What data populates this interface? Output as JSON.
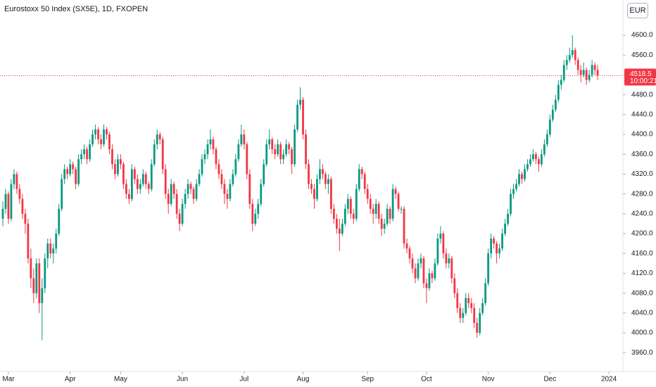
{
  "chart_data": {
    "type": "candlestick",
    "title": "Eurostoxx 50 Index (SX5E), 1D, FXOPEN",
    "currency": "EUR",
    "up_color": "#089981",
    "down_color": "#f23645",
    "xlim": [
      -1,
      221
    ],
    "xticks": [
      {
        "value": 2,
        "label": "Mar"
      },
      {
        "value": 24,
        "label": "Apr"
      },
      {
        "value": 42,
        "label": "May"
      },
      {
        "value": 64,
        "label": "Jun"
      },
      {
        "value": 86,
        "label": "Jul"
      },
      {
        "value": 107,
        "label": "Aug"
      },
      {
        "value": 130,
        "label": "Sep"
      },
      {
        "value": 151,
        "label": "Oct"
      },
      {
        "value": 173,
        "label": "Nov"
      },
      {
        "value": 195,
        "label": "Dec"
      },
      {
        "value": 216,
        "label": "2024"
      }
    ],
    "ylim": [
      3922,
      4671
    ],
    "yticks": [
      {
        "value": 3960,
        "label": "3960.0"
      },
      {
        "value": 4000,
        "label": "4000.0"
      },
      {
        "value": 4040,
        "label": "4040.0"
      },
      {
        "value": 4080,
        "label": "4080.0"
      },
      {
        "value": 4120,
        "label": "4120.0"
      },
      {
        "value": 4160,
        "label": "4160.0"
      },
      {
        "value": 4200,
        "label": "4200.0"
      },
      {
        "value": 4240,
        "label": "4240.0"
      },
      {
        "value": 4280,
        "label": "4280.0"
      },
      {
        "value": 4320,
        "label": "4320.0"
      },
      {
        "value": 4360,
        "label": "4360.0"
      },
      {
        "value": 4400,
        "label": "4400.0"
      },
      {
        "value": 4440,
        "label": "4440.0"
      },
      {
        "value": 4480,
        "label": "4480.0"
      },
      {
        "value": 4520,
        "label": "4520.0"
      },
      {
        "value": 4560,
        "label": "4560.0"
      },
      {
        "value": 4600,
        "label": "4600.0"
      }
    ],
    "last_price": 4518.5,
    "countdown": "10:00:21",
    "ohlc": [
      [
        4230,
        4265,
        4215,
        4250
      ],
      [
        4250,
        4290,
        4240,
        4280
      ],
      [
        4280,
        4285,
        4220,
        4230
      ],
      [
        4230,
        4310,
        4225,
        4300
      ],
      [
        4300,
        4330,
        4290,
        4320
      ],
      [
        4320,
        4325,
        4280,
        4290
      ],
      [
        4290,
        4300,
        4260,
        4270
      ],
      [
        4270,
        4280,
        4230,
        4240
      ],
      [
        4240,
        4250,
        4200,
        4220
      ],
      [
        4220,
        4230,
        4140,
        4150
      ],
      [
        4150,
        4170,
        4090,
        4110
      ],
      [
        4110,
        4130,
        4060,
        4080
      ],
      [
        4080,
        4150,
        4070,
        4140
      ],
      [
        4140,
        4150,
        4040,
        4060
      ],
      [
        4060,
        4110,
        3985,
        4090
      ],
      [
        4090,
        4160,
        4080,
        4150
      ],
      [
        4150,
        4190,
        4130,
        4180
      ],
      [
        4180,
        4190,
        4150,
        4160
      ],
      [
        4160,
        4180,
        4140,
        4170
      ],
      [
        4170,
        4210,
        4160,
        4200
      ],
      [
        4200,
        4260,
        4195,
        4250
      ],
      [
        4250,
        4320,
        4245,
        4310
      ],
      [
        4310,
        4340,
        4300,
        4330
      ],
      [
        4330,
        4335,
        4310,
        4320
      ],
      [
        4320,
        4350,
        4315,
        4340
      ],
      [
        4340,
        4345,
        4320,
        4330
      ],
      [
        4330,
        4335,
        4290,
        4300
      ],
      [
        4300,
        4360,
        4295,
        4350
      ],
      [
        4350,
        4370,
        4340,
        4360
      ],
      [
        4360,
        4380,
        4350,
        4370
      ],
      [
        4370,
        4375,
        4340,
        4350
      ],
      [
        4350,
        4390,
        4345,
        4380
      ],
      [
        4380,
        4410,
        4375,
        4400
      ],
      [
        4400,
        4420,
        4390,
        4410
      ],
      [
        4410,
        4415,
        4380,
        4390
      ],
      [
        4390,
        4400,
        4370,
        4380
      ],
      [
        4380,
        4420,
        4375,
        4410
      ],
      [
        4410,
        4415,
        4390,
        4400
      ],
      [
        4400,
        4405,
        4360,
        4370
      ],
      [
        4370,
        4380,
        4330,
        4340
      ],
      [
        4340,
        4350,
        4310,
        4320
      ],
      [
        4320,
        4360,
        4315,
        4350
      ],
      [
        4350,
        4360,
        4330,
        4340
      ],
      [
        4340,
        4345,
        4290,
        4300
      ],
      [
        4300,
        4310,
        4270,
        4280
      ],
      [
        4280,
        4290,
        4260,
        4270
      ],
      [
        4270,
        4340,
        4265,
        4330
      ],
      [
        4330,
        4335,
        4300,
        4310
      ],
      [
        4310,
        4320,
        4280,
        4290
      ],
      [
        4290,
        4310,
        4280,
        4300
      ],
      [
        4300,
        4330,
        4295,
        4320
      ],
      [
        4320,
        4325,
        4290,
        4300
      ],
      [
        4300,
        4305,
        4280,
        4290
      ],
      [
        4290,
        4350,
        4285,
        4340
      ],
      [
        4340,
        4390,
        4335,
        4380
      ],
      [
        4380,
        4410,
        4370,
        4400
      ],
      [
        4400,
        4405,
        4380,
        4390
      ],
      [
        4390,
        4395,
        4320,
        4330
      ],
      [
        4330,
        4340,
        4270,
        4280
      ],
      [
        4280,
        4290,
        4240,
        4260
      ],
      [
        4260,
        4310,
        4255,
        4300
      ],
      [
        4300,
        4305,
        4270,
        4280
      ],
      [
        4280,
        4290,
        4230,
        4240
      ],
      [
        4240,
        4250,
        4205,
        4220
      ],
      [
        4220,
        4270,
        4215,
        4260
      ],
      [
        4260,
        4290,
        4250,
        4280
      ],
      [
        4280,
        4310,
        4270,
        4300
      ],
      [
        4300,
        4305,
        4280,
        4290
      ],
      [
        4290,
        4295,
        4260,
        4270
      ],
      [
        4270,
        4310,
        4265,
        4300
      ],
      [
        4300,
        4330,
        4295,
        4320
      ],
      [
        4320,
        4360,
        4315,
        4350
      ],
      [
        4350,
        4370,
        4340,
        4360
      ],
      [
        4360,
        4390,
        4350,
        4380
      ],
      [
        4380,
        4410,
        4370,
        4390
      ],
      [
        4390,
        4395,
        4360,
        4370
      ],
      [
        4370,
        4375,
        4330,
        4340
      ],
      [
        4340,
        4350,
        4310,
        4320
      ],
      [
        4320,
        4330,
        4290,
        4300
      ],
      [
        4300,
        4310,
        4260,
        4280
      ],
      [
        4280,
        4290,
        4250,
        4270
      ],
      [
        4270,
        4310,
        4265,
        4300
      ],
      [
        4300,
        4330,
        4295,
        4320
      ],
      [
        4320,
        4360,
        4315,
        4350
      ],
      [
        4350,
        4390,
        4345,
        4380
      ],
      [
        4380,
        4420,
        4375,
        4400
      ],
      [
        4400,
        4410,
        4370,
        4380
      ],
      [
        4380,
        4385,
        4310,
        4320
      ],
      [
        4320,
        4330,
        4250,
        4260
      ],
      [
        4260,
        4270,
        4205,
        4220
      ],
      [
        4220,
        4250,
        4215,
        4240
      ],
      [
        4240,
        4270,
        4230,
        4260
      ],
      [
        4260,
        4310,
        4255,
        4300
      ],
      [
        4300,
        4350,
        4295,
        4340
      ],
      [
        4340,
        4390,
        4335,
        4380
      ],
      [
        4380,
        4410,
        4370,
        4390
      ],
      [
        4390,
        4395,
        4360,
        4370
      ],
      [
        4370,
        4380,
        4350,
        4360
      ],
      [
        4360,
        4390,
        4355,
        4380
      ],
      [
        4380,
        4385,
        4340,
        4350
      ],
      [
        4350,
        4370,
        4340,
        4360
      ],
      [
        4360,
        4390,
        4355,
        4380
      ],
      [
        4380,
        4385,
        4360,
        4370
      ],
      [
        4370,
        4375,
        4320,
        4340
      ],
      [
        4340,
        4420,
        4335,
        4410
      ],
      [
        4410,
        4470,
        4405,
        4460
      ],
      [
        4460,
        4495,
        4450,
        4470
      ],
      [
        4470,
        4475,
        4390,
        4400
      ],
      [
        4400,
        4410,
        4330,
        4340
      ],
      [
        4340,
        4350,
        4290,
        4300
      ],
      [
        4300,
        4310,
        4280,
        4290
      ],
      [
        4290,
        4300,
        4250,
        4270
      ],
      [
        4270,
        4320,
        4265,
        4310
      ],
      [
        4310,
        4350,
        4300,
        4330
      ],
      [
        4330,
        4340,
        4310,
        4320
      ],
      [
        4320,
        4325,
        4290,
        4300
      ],
      [
        4300,
        4320,
        4280,
        4310
      ],
      [
        4310,
        4315,
        4240,
        4250
      ],
      [
        4250,
        4260,
        4220,
        4230
      ],
      [
        4230,
        4240,
        4200,
        4210
      ],
      [
        4210,
        4230,
        4165,
        4200
      ],
      [
        4200,
        4230,
        4195,
        4220
      ],
      [
        4220,
        4260,
        4215,
        4250
      ],
      [
        4250,
        4280,
        4240,
        4270
      ],
      [
        4270,
        4275,
        4230,
        4240
      ],
      [
        4240,
        4250,
        4220,
        4230
      ],
      [
        4230,
        4300,
        4225,
        4290
      ],
      [
        4290,
        4340,
        4285,
        4330
      ],
      [
        4330,
        4335,
        4310,
        4320
      ],
      [
        4320,
        4325,
        4280,
        4290
      ],
      [
        4290,
        4300,
        4260,
        4270
      ],
      [
        4270,
        4280,
        4240,
        4250
      ],
      [
        4250,
        4260,
        4220,
        4240
      ],
      [
        4240,
        4270,
        4230,
        4260
      ],
      [
        4260,
        4265,
        4220,
        4230
      ],
      [
        4230,
        4240,
        4195,
        4210
      ],
      [
        4210,
        4230,
        4200,
        4220
      ],
      [
        4220,
        4260,
        4215,
        4250
      ],
      [
        4250,
        4255,
        4220,
        4230
      ],
      [
        4230,
        4300,
        4225,
        4290
      ],
      [
        4290,
        4295,
        4270,
        4280
      ],
      [
        4280,
        4285,
        4245,
        4250
      ],
      [
        4250,
        4255,
        4240,
        4250
      ],
      [
        4250,
        4255,
        4170,
        4180
      ],
      [
        4180,
        4190,
        4160,
        4170
      ],
      [
        4170,
        4175,
        4140,
        4150
      ],
      [
        4150,
        4160,
        4120,
        4130
      ],
      [
        4130,
        4140,
        4100,
        4110
      ],
      [
        4110,
        4150,
        4105,
        4140
      ],
      [
        4140,
        4160,
        4130,
        4150
      ],
      [
        4150,
        4155,
        4090,
        4100
      ],
      [
        4100,
        4110,
        4060,
        4090
      ],
      [
        4090,
        4130,
        4085,
        4120
      ],
      [
        4120,
        4125,
        4100,
        4110
      ],
      [
        4110,
        4150,
        4105,
        4140
      ],
      [
        4140,
        4200,
        4135,
        4190
      ],
      [
        4190,
        4215,
        4180,
        4200
      ],
      [
        4200,
        4205,
        4150,
        4160
      ],
      [
        4160,
        4170,
        4130,
        4140
      ],
      [
        4140,
        4160,
        4130,
        4150
      ],
      [
        4150,
        4155,
        4100,
        4110
      ],
      [
        4110,
        4120,
        4070,
        4080
      ],
      [
        4080,
        4090,
        4040,
        4050
      ],
      [
        4050,
        4060,
        4020,
        4030
      ],
      [
        4030,
        4050,
        4020,
        4040
      ],
      [
        4040,
        4080,
        4035,
        4070
      ],
      [
        4070,
        4080,
        4050,
        4060
      ],
      [
        4060,
        4070,
        4040,
        4050
      ],
      [
        4050,
        4060,
        4010,
        4020
      ],
      [
        4020,
        4030,
        3990,
        4000
      ],
      [
        4000,
        4050,
        3995,
        4040
      ],
      [
        4040,
        4070,
        4035,
        4060
      ],
      [
        4060,
        4110,
        4055,
        4100
      ],
      [
        4100,
        4170,
        4095,
        4160
      ],
      [
        4160,
        4200,
        4150,
        4190
      ],
      [
        4190,
        4195,
        4170,
        4180
      ],
      [
        4180,
        4185,
        4140,
        4160
      ],
      [
        4160,
        4180,
        4150,
        4170
      ],
      [
        4170,
        4210,
        4165,
        4200
      ],
      [
        4200,
        4230,
        4195,
        4220
      ],
      [
        4220,
        4250,
        4215,
        4240
      ],
      [
        4240,
        4290,
        4235,
        4280
      ],
      [
        4280,
        4300,
        4270,
        4290
      ],
      [
        4290,
        4310,
        4285,
        4300
      ],
      [
        4300,
        4330,
        4295,
        4320
      ],
      [
        4320,
        4325,
        4300,
        4310
      ],
      [
        4310,
        4340,
        4305,
        4330
      ],
      [
        4330,
        4350,
        4325,
        4340
      ],
      [
        4340,
        4360,
        4335,
        4350
      ],
      [
        4350,
        4370,
        4345,
        4360
      ],
      [
        4360,
        4365,
        4340,
        4350
      ],
      [
        4350,
        4355,
        4325,
        4340
      ],
      [
        4340,
        4370,
        4335,
        4360
      ],
      [
        4360,
        4390,
        4355,
        4380
      ],
      [
        4380,
        4410,
        4375,
        4400
      ],
      [
        4400,
        4440,
        4395,
        4430
      ],
      [
        4430,
        4460,
        4425,
        4450
      ],
      [
        4450,
        4480,
        4445,
        4470
      ],
      [
        4470,
        4510,
        4465,
        4500
      ],
      [
        4500,
        4520,
        4490,
        4510
      ],
      [
        4510,
        4550,
        4505,
        4540
      ],
      [
        4540,
        4560,
        4530,
        4550
      ],
      [
        4550,
        4575,
        4545,
        4560
      ],
      [
        4560,
        4600,
        4555,
        4570
      ],
      [
        4570,
        4575,
        4540,
        4550
      ],
      [
        4550,
        4555,
        4520,
        4530
      ],
      [
        4530,
        4540,
        4505,
        4520
      ],
      [
        4520,
        4545,
        4515,
        4530
      ],
      [
        4530,
        4535,
        4500,
        4510
      ],
      [
        4510,
        4530,
        4505,
        4520
      ],
      [
        4520,
        4550,
        4515,
        4540
      ],
      [
        4540,
        4545,
        4520,
        4530
      ],
      [
        4530,
        4540,
        4510,
        4518.5
      ]
    ]
  }
}
